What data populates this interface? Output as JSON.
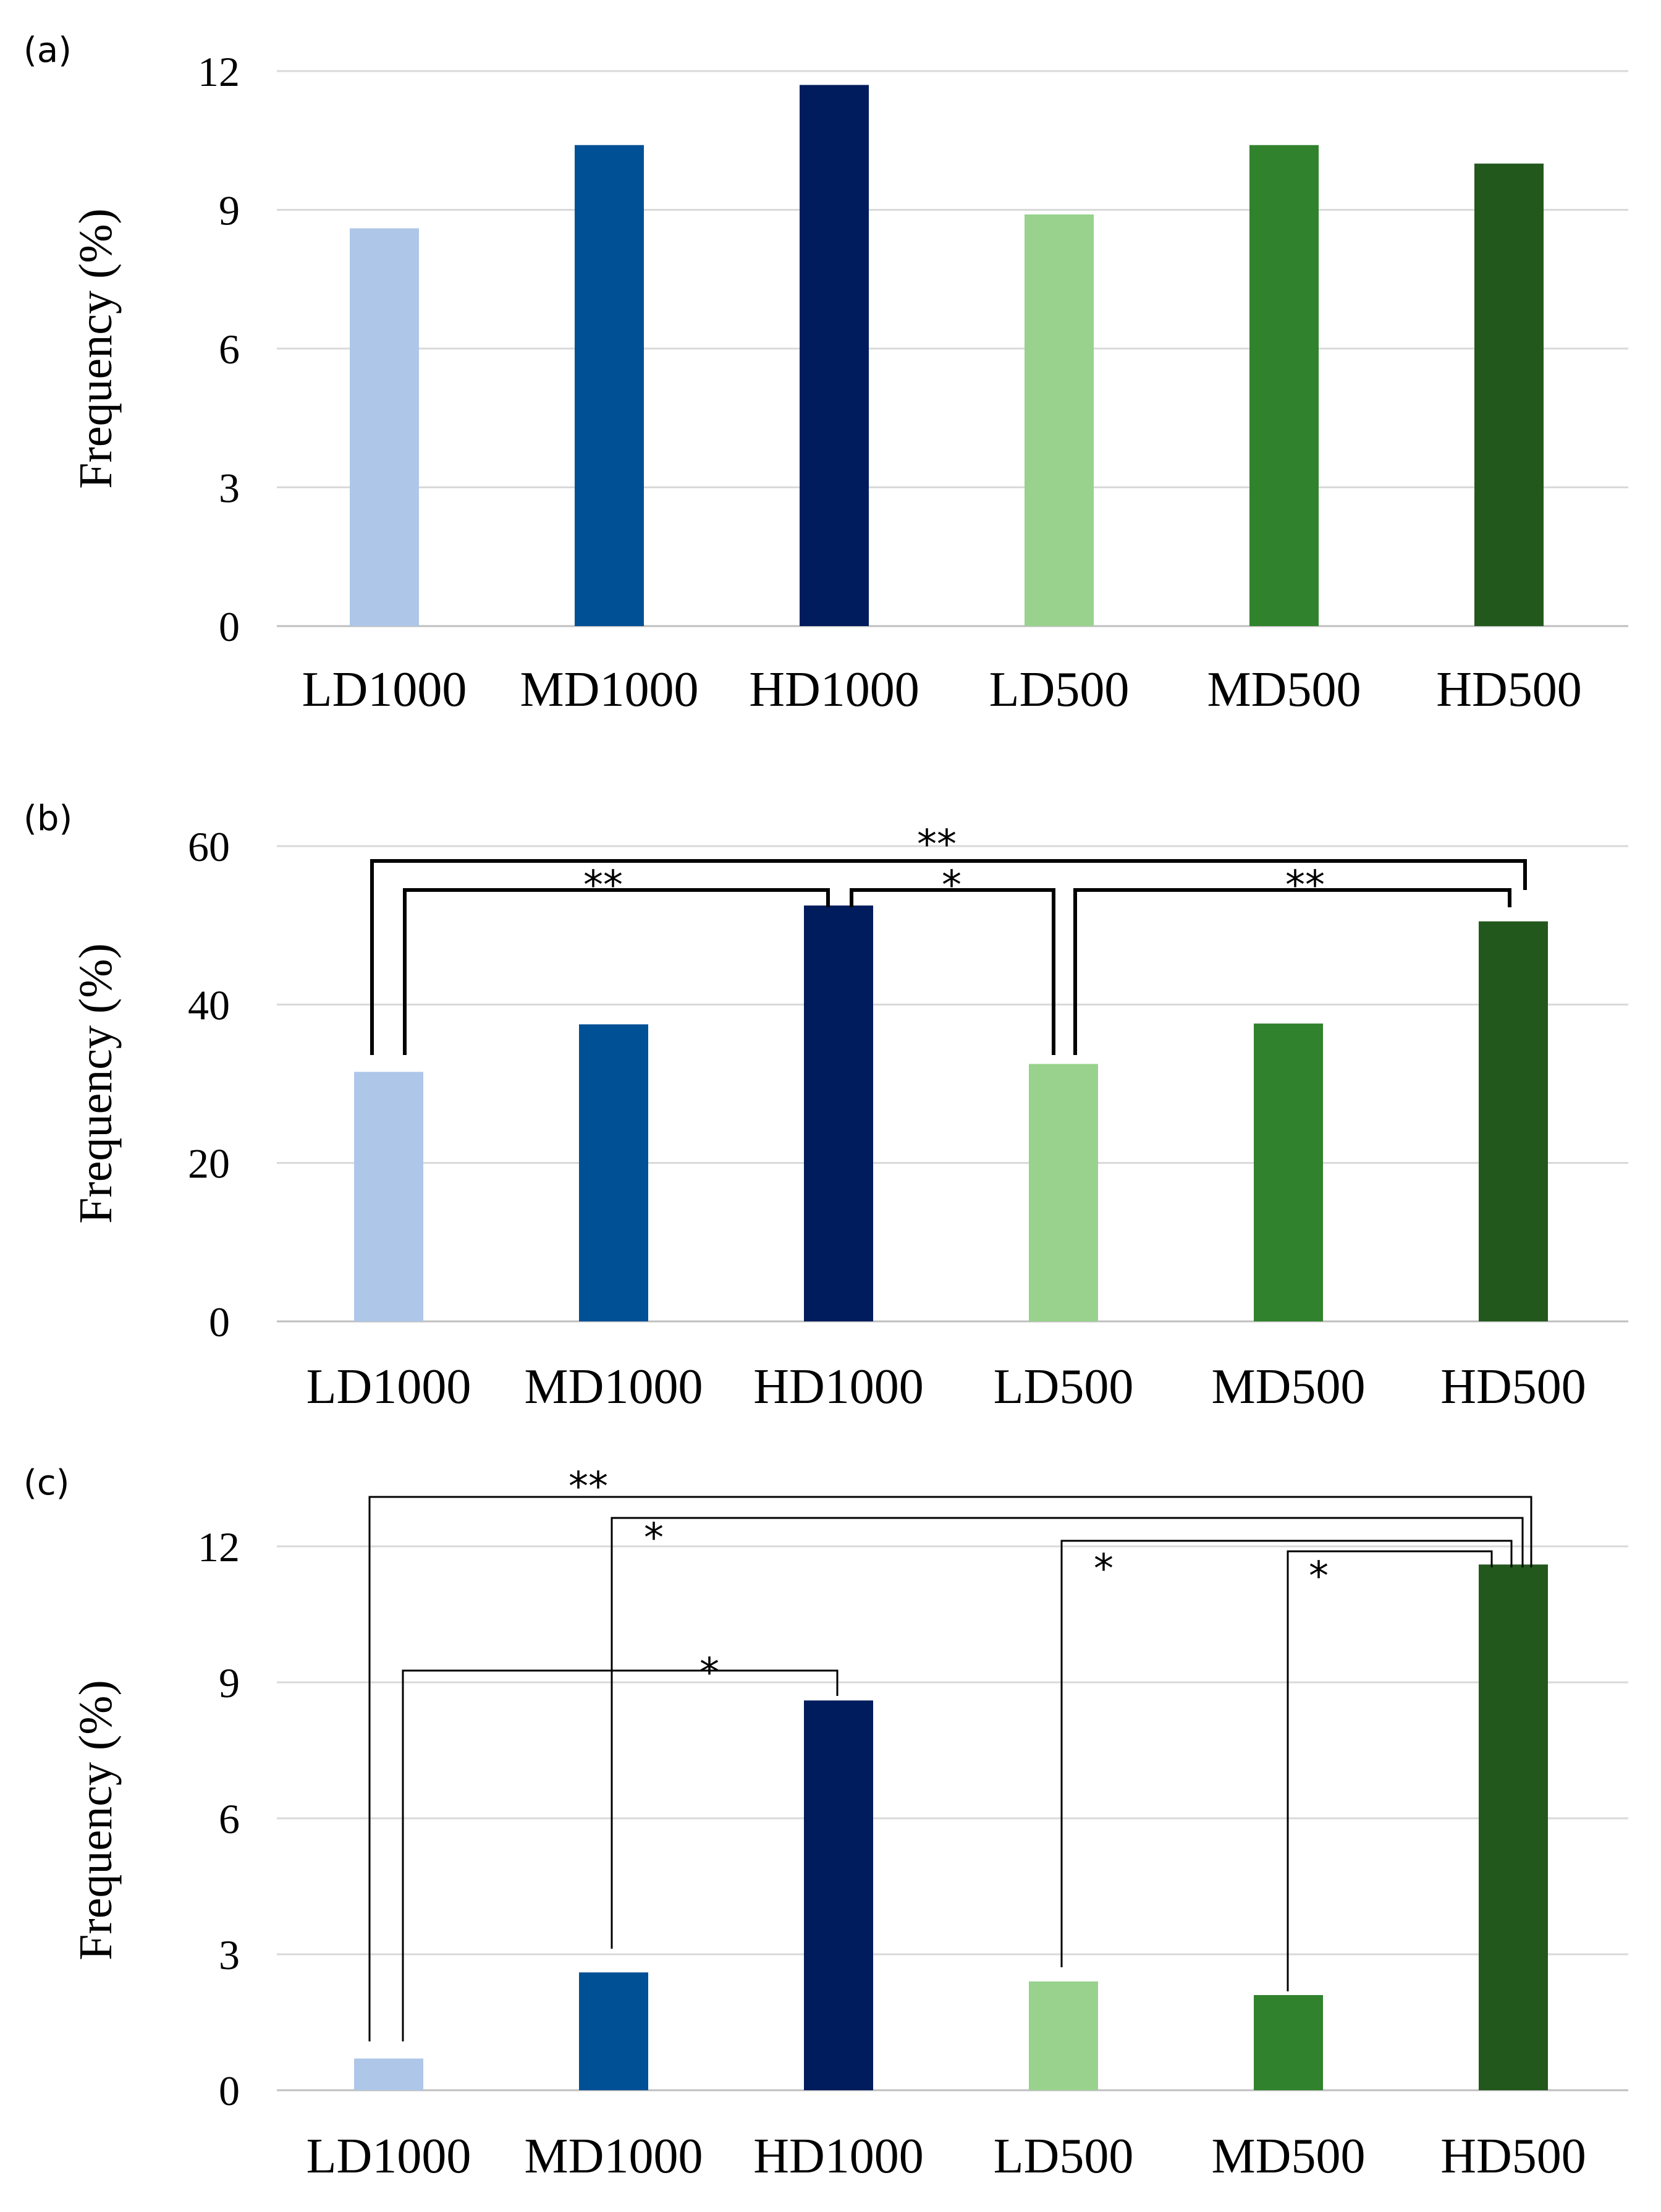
{
  "chart_data": [
    {
      "panel_label": "(a)",
      "type": "bar",
      "ylabel": "Frequency (%)",
      "ylim": [
        0,
        12
      ],
      "yticks": [
        "0",
        "3",
        "6",
        "9",
        "12"
      ],
      "categories": [
        "LD1000",
        "MD1000",
        "HD1000",
        "LD500",
        "MD500",
        "HD500"
      ],
      "values": [
        8.6,
        10.4,
        11.7,
        8.9,
        10.4,
        10.0
      ],
      "colors": [
        "#aec7e8",
        "#005096",
        "#001c5c",
        "#98d28c",
        "#31822d",
        "#23581d"
      ],
      "significance": []
    },
    {
      "panel_label": "(b)",
      "type": "bar",
      "ylabel": "Frequency (%)",
      "ylim": [
        0,
        60
      ],
      "yticks": [
        "0",
        "20",
        "40",
        "60"
      ],
      "categories": [
        "LD1000",
        "MD1000",
        "HD1000",
        "LD500",
        "MD500",
        "HD500"
      ],
      "values": [
        31.5,
        37.5,
        52.5,
        32.5,
        37.6,
        50.5
      ],
      "colors": [
        "#aec7e8",
        "#005096",
        "#001c5c",
        "#98d28c",
        "#31822d",
        "#23581d"
      ],
      "significance": [
        {
          "from": 0,
          "to": 5,
          "label": "**"
        },
        {
          "from": 0,
          "to": 2,
          "label": "**"
        },
        {
          "from": 2,
          "to": 3,
          "label": "*"
        },
        {
          "from": 3,
          "to": 5,
          "label": "**"
        }
      ]
    },
    {
      "panel_label": "(c)",
      "type": "bar",
      "ylabel": "Frequency (%)",
      "ylim": [
        0,
        12
      ],
      "yticks": [
        "0",
        "3",
        "6",
        "9",
        "12"
      ],
      "categories": [
        "LD1000",
        "MD1000",
        "HD1000",
        "LD500",
        "MD500",
        "HD500"
      ],
      "values": [
        0.7,
        2.6,
        8.6,
        2.4,
        2.1,
        11.6
      ],
      "colors": [
        "#aec7e8",
        "#005096",
        "#001c5c",
        "#98d28c",
        "#31822d",
        "#23581d"
      ],
      "significance": [
        {
          "from": 0,
          "to": 5,
          "label": "**"
        },
        {
          "from": 1,
          "to": 5,
          "label": "*"
        },
        {
          "from": 3,
          "to": 5,
          "label": "*"
        },
        {
          "from": 4,
          "to": 5,
          "label": "*"
        },
        {
          "from": 0,
          "to": 2,
          "label": "*"
        }
      ]
    }
  ]
}
